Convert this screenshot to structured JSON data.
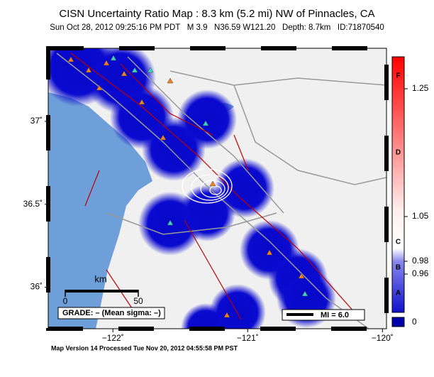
{
  "header": {
    "title": "CISN Uncertainty Ratio Map : 8.3 km (5.2 mi) NW of Pinnacles, CA",
    "subtitle": "Sun Oct 28, 2012 09:25:16 PM PDT   M 3.9   N36.59 W121.20   Depth: 8.7km   ID:71870540"
  },
  "map": {
    "xlim": [
      -122.48,
      -119.97
    ],
    "ylim": [
      35.75,
      37.44
    ],
    "xticks": [
      {
        "value": -122,
        "label": "−122˚"
      },
      {
        "value": -121,
        "label": "−121˚"
      },
      {
        "value": -120,
        "label": "−120˚"
      }
    ],
    "yticks": [
      {
        "value": 36,
        "label": "36˚"
      },
      {
        "value": 36.5,
        "label": "36.5˚"
      },
      {
        "value": 37,
        "label": "37˚"
      }
    ]
  },
  "scale_bar": {
    "title": "km",
    "ticks": [
      0,
      50
    ]
  },
  "grade": "GRADE: – (Mean sigma: –)",
  "mi_legend": "MI = 6.0",
  "colorbar": {
    "lim": [
      0.9,
      1.3
    ],
    "ticks": [
      0.96,
      0.98,
      1.05,
      1.25
    ],
    "zero": 0,
    "grades": [
      {
        "value": 0.93,
        "label": "A"
      },
      {
        "value": 0.97,
        "label": "B"
      },
      {
        "value": 1.01,
        "label": "C"
      },
      {
        "value": 1.15,
        "label": "D"
      },
      {
        "value": 1.27,
        "label": "F"
      }
    ]
  },
  "footer": "Map Version 14 Processed Tue Nov 20, 2012 04:55:58 PM PST"
}
